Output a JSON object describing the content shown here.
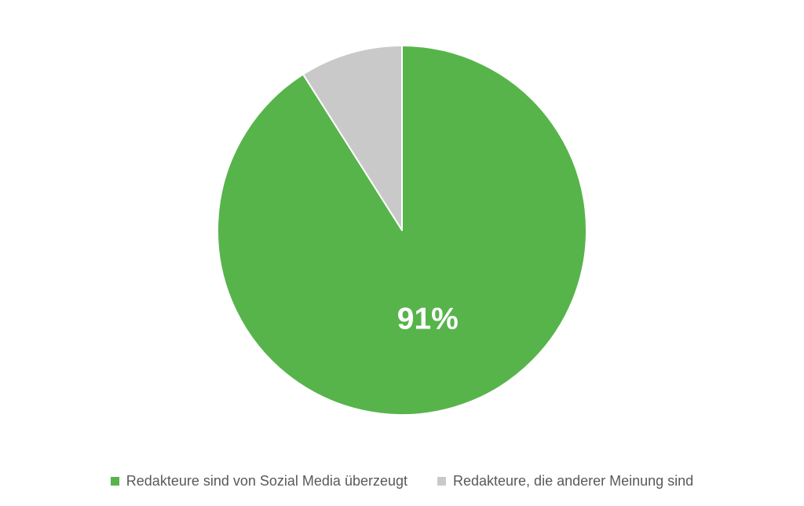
{
  "page": {
    "background_color": "#FFFFFF"
  },
  "chart_data": {
    "type": "pie",
    "title": "",
    "unit": "%",
    "start_angle_deg": 0,
    "direction": "clockwise",
    "legend_position": "bottom",
    "data_label_color": "#FFFFFF",
    "legend_text_color": "#595959",
    "separator_color": "#FFFFFF",
    "categories": [
      "Redakteure sind von Sozial Media überzeugt",
      "Redakteure, die anderer Meinung sind"
    ],
    "values": [
      91,
      9
    ],
    "slices": [
      {
        "label": "Redakteure sind von Sozial Media überzeugt",
        "value": 91,
        "data_label": "91%",
        "color": "#57B44B"
      },
      {
        "label": "Redakteure, die anderer Meinung sind",
        "value": 9,
        "data_label": "",
        "color": "#C9C9C9"
      }
    ]
  }
}
